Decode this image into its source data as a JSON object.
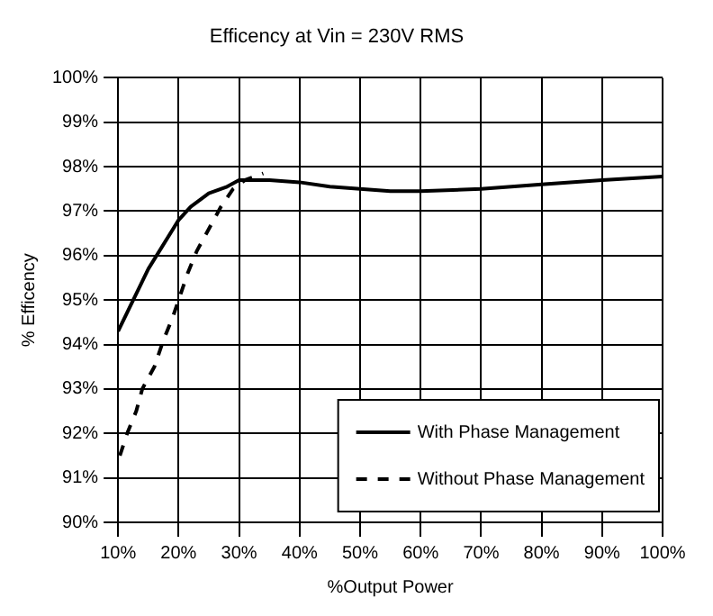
{
  "chart_data": {
    "type": "line",
    "title": "Efficency at Vin = 230V RMS",
    "xlabel": "%Output Power",
    "ylabel": "% Efficency",
    "xlim": [
      10,
      100
    ],
    "ylim": [
      90,
      100
    ],
    "xticks": [
      {
        "value": 10,
        "label": "10%"
      },
      {
        "value": 20,
        "label": "20%"
      },
      {
        "value": 30,
        "label": "30%"
      },
      {
        "value": 40,
        "label": "40%"
      },
      {
        "value": 50,
        "label": "50%"
      },
      {
        "value": 60,
        "label": "60%"
      },
      {
        "value": 70,
        "label": "70%"
      },
      {
        "value": 80,
        "label": "80%"
      },
      {
        "value": 90,
        "label": "90%"
      },
      {
        "value": 100,
        "label": "100%"
      }
    ],
    "yticks": [
      {
        "value": 90,
        "label": "90%"
      },
      {
        "value": 91,
        "label": "91%"
      },
      {
        "value": 92,
        "label": "92%"
      },
      {
        "value": 93,
        "label": "93%"
      },
      {
        "value": 94,
        "label": "94%"
      },
      {
        "value": 95,
        "label": "95%"
      },
      {
        "value": 96,
        "label": "96%"
      },
      {
        "value": 97,
        "label": "97%"
      },
      {
        "value": 98,
        "label": "98%"
      },
      {
        "value": 99,
        "label": "99%"
      },
      {
        "value": 100,
        "label": "100%"
      }
    ],
    "grid": true,
    "legend": "bottom right",
    "marker": "none",
    "series": [
      {
        "name": "With Phase Management",
        "color": "#000000",
        "line_style": "solid",
        "x": [
          10,
          15,
          20,
          22,
          25,
          28,
          30,
          35,
          40,
          45,
          50,
          55,
          60,
          70,
          80,
          90,
          100
        ],
        "values": [
          94.3,
          95.7,
          96.8,
          97.1,
          97.4,
          97.55,
          97.7,
          97.7,
          97.65,
          97.55,
          97.5,
          97.45,
          97.45,
          97.5,
          97.6,
          97.7,
          97.78
        ]
      },
      {
        "name": "Without Phase Management",
        "color": "#000000",
        "line_style": "dashed",
        "x": [
          10.3,
          11.5,
          13,
          14,
          16,
          17.5,
          19,
          20.5,
          21.5,
          23,
          25,
          27,
          29,
          31,
          34
        ],
        "values": [
          91.5,
          92,
          92.5,
          93,
          93.5,
          94.1,
          94.6,
          95.2,
          95.6,
          96.1,
          96.6,
          97.1,
          97.5,
          97.7,
          97.85
        ]
      }
    ]
  }
}
